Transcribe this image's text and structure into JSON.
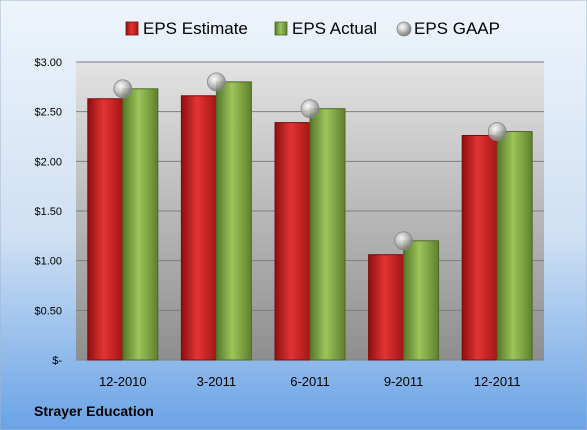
{
  "company": "Strayer Education",
  "chart_data": {
    "type": "bar",
    "categories": [
      "12-2010",
      "3-2011",
      "6-2011",
      "9-2011",
      "12-2011"
    ],
    "series": [
      {
        "name": "EPS Estimate",
        "kind": "bar",
        "color": "#cc1f1f",
        "values": [
          2.63,
          2.66,
          2.39,
          1.06,
          2.26
        ]
      },
      {
        "name": "EPS Actual",
        "kind": "bar",
        "color": "#7da43c",
        "values": [
          2.73,
          2.8,
          2.53,
          1.2,
          2.3
        ]
      },
      {
        "name": "EPS GAAP",
        "kind": "marker",
        "color": "#a6a6a6",
        "values": [
          2.73,
          2.8,
          2.53,
          1.2,
          2.3
        ]
      }
    ],
    "y_ticks": [
      "$-",
      "$0.50",
      "$1.00",
      "$1.50",
      "$2.00",
      "$2.50",
      "$3.00"
    ],
    "ylim": [
      0,
      3.0
    ],
    "grid": true,
    "legend_position": "top"
  }
}
